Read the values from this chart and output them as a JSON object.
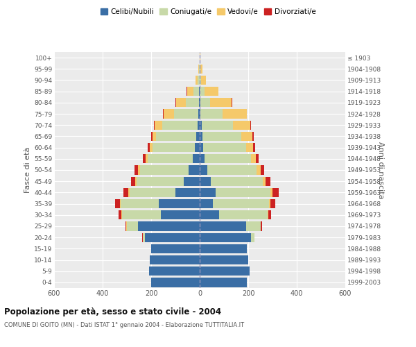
{
  "age_groups": [
    "0-4",
    "5-9",
    "10-14",
    "15-19",
    "20-24",
    "25-29",
    "30-34",
    "35-39",
    "40-44",
    "45-49",
    "50-54",
    "55-59",
    "60-64",
    "65-69",
    "70-74",
    "75-79",
    "80-84",
    "85-89",
    "90-94",
    "95-99",
    "100+"
  ],
  "birth_years": [
    "1999-2003",
    "1994-1998",
    "1989-1993",
    "1984-1988",
    "1979-1983",
    "1974-1978",
    "1969-1973",
    "1964-1968",
    "1959-1963",
    "1954-1958",
    "1949-1953",
    "1944-1948",
    "1939-1943",
    "1934-1938",
    "1929-1933",
    "1924-1928",
    "1919-1923",
    "1914-1918",
    "1909-1913",
    "1904-1908",
    "≤ 1903"
  ],
  "male_celibi": [
    200,
    210,
    205,
    200,
    225,
    255,
    160,
    170,
    100,
    65,
    45,
    30,
    20,
    15,
    10,
    5,
    3,
    2,
    1,
    0,
    0
  ],
  "male_coniugati": [
    0,
    0,
    0,
    0,
    10,
    45,
    160,
    155,
    190,
    195,
    200,
    185,
    175,
    165,
    145,
    100,
    55,
    25,
    8,
    2,
    0
  ],
  "male_vedovi": [
    0,
    0,
    0,
    0,
    0,
    2,
    3,
    3,
    5,
    5,
    8,
    8,
    10,
    15,
    30,
    45,
    40,
    25,
    8,
    3,
    1
  ],
  "male_divorziati": [
    0,
    0,
    0,
    0,
    2,
    5,
    10,
    20,
    20,
    18,
    15,
    12,
    8,
    5,
    3,
    2,
    1,
    1,
    0,
    0,
    0
  ],
  "female_celibi": [
    195,
    205,
    200,
    195,
    210,
    190,
    80,
    55,
    65,
    45,
    30,
    20,
    15,
    12,
    8,
    4,
    2,
    1,
    0,
    0,
    0
  ],
  "female_coniugati": [
    0,
    0,
    0,
    0,
    15,
    60,
    200,
    230,
    225,
    215,
    205,
    190,
    175,
    160,
    130,
    90,
    40,
    20,
    6,
    2,
    0
  ],
  "female_vedovi": [
    0,
    0,
    0,
    0,
    0,
    2,
    4,
    5,
    10,
    12,
    15,
    20,
    30,
    45,
    70,
    100,
    90,
    55,
    20,
    8,
    2
  ],
  "female_divorziati": [
    0,
    0,
    0,
    0,
    2,
    5,
    10,
    20,
    25,
    20,
    15,
    12,
    8,
    5,
    2,
    1,
    1,
    1,
    0,
    0,
    0
  ],
  "colors": {
    "celibi": "#3A6EA5",
    "coniugati": "#C8D9A8",
    "vedovi": "#F5C96A",
    "divorziati": "#CC2222"
  },
  "title1": "Popolazione per età, sesso e stato civile - 2004",
  "title2": "COMUNE DI GOITO (MN) - Dati ISTAT 1° gennaio 2004 - Elaborazione TUTTITALIA.IT",
  "xlim": 600,
  "legend_labels": [
    "Celibi/Nubili",
    "Coniugati/e",
    "Vedovi/e",
    "Divorziati/e"
  ],
  "ylabel_left": "Fasce di età",
  "ylabel_right": "Anni di nascita"
}
